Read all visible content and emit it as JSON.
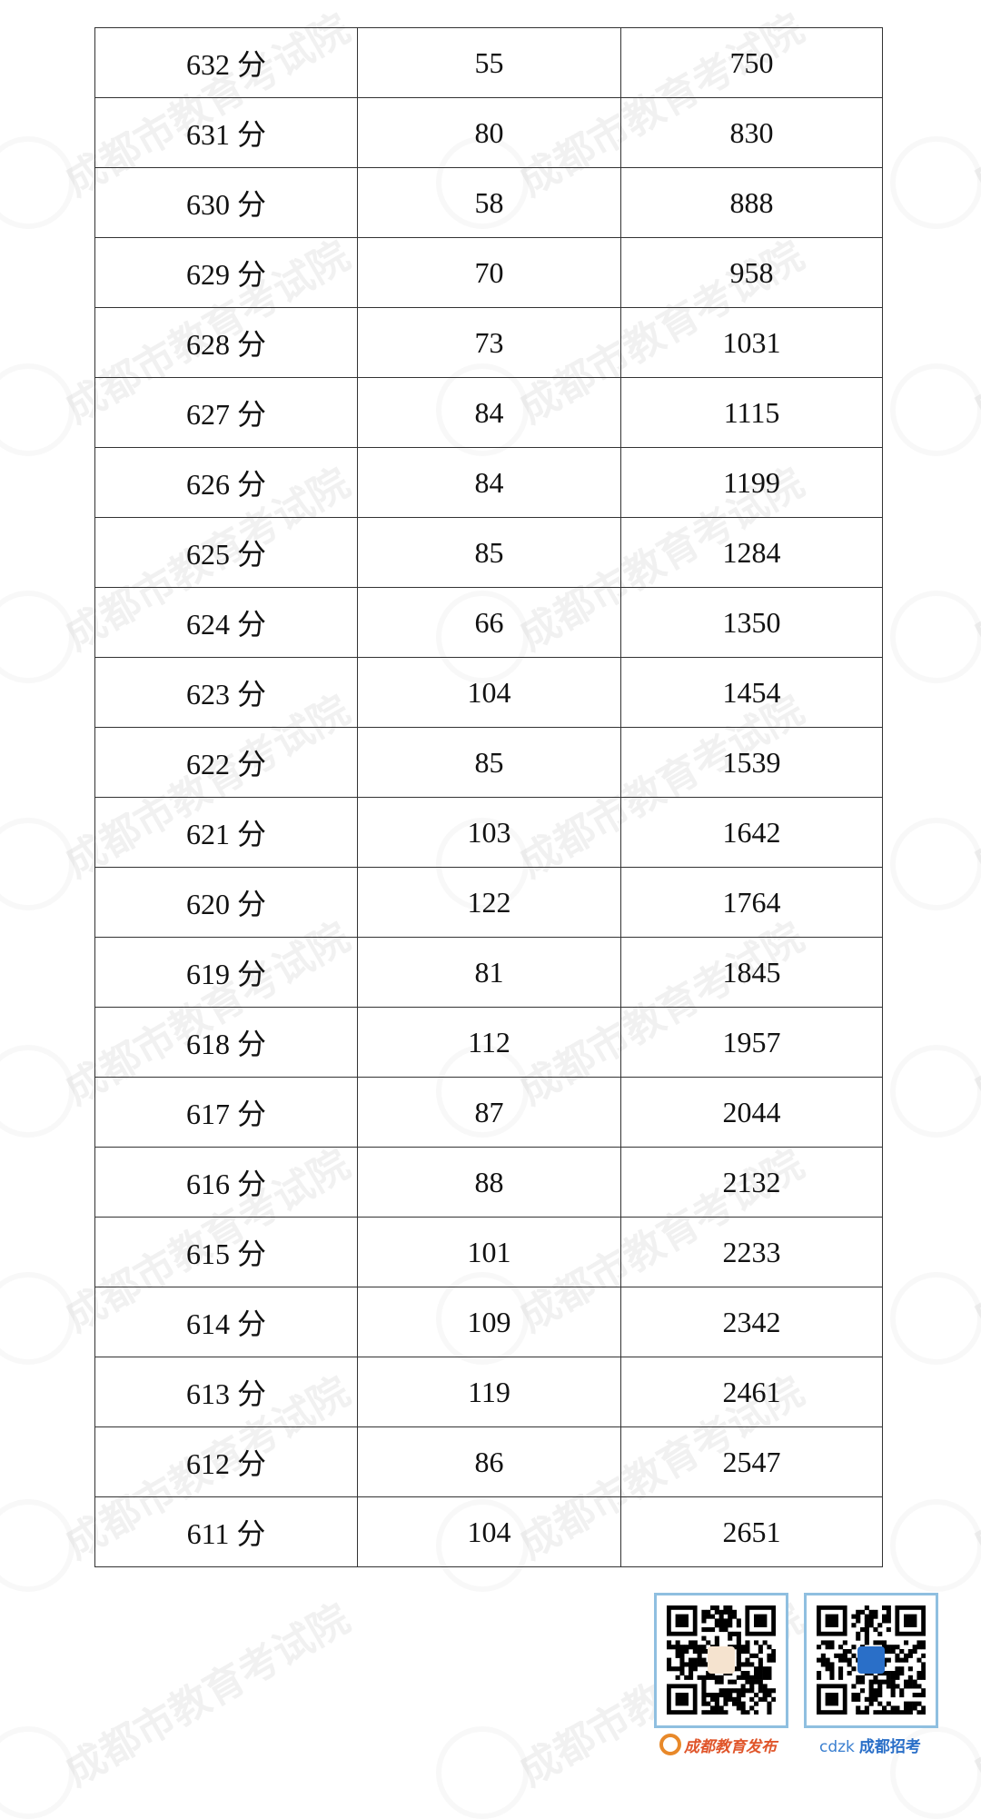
{
  "watermark": "成都市教育考试院",
  "table": {
    "rows": [
      [
        "632 分",
        "55",
        "750"
      ],
      [
        "631 分",
        "80",
        "830"
      ],
      [
        "630 分",
        "58",
        "888"
      ],
      [
        "629 分",
        "70",
        "958"
      ],
      [
        "628 分",
        "73",
        "1031"
      ],
      [
        "627 分",
        "84",
        "1115"
      ],
      [
        "626 分",
        "84",
        "1199"
      ],
      [
        "625 分",
        "85",
        "1284"
      ],
      [
        "624 分",
        "66",
        "1350"
      ],
      [
        "623 分",
        "104",
        "1454"
      ],
      [
        "622 分",
        "85",
        "1539"
      ],
      [
        "621 分",
        "103",
        "1642"
      ],
      [
        "620 分",
        "122",
        "1764"
      ],
      [
        "619 分",
        "81",
        "1845"
      ],
      [
        "618 分",
        "112",
        "1957"
      ],
      [
        "617 分",
        "87",
        "2044"
      ],
      [
        "616 分",
        "88",
        "2132"
      ],
      [
        "615 分",
        "101",
        "2233"
      ],
      [
        "614 分",
        "109",
        "2342"
      ],
      [
        "613 分",
        "119",
        "2461"
      ],
      [
        "612 分",
        "86",
        "2547"
      ],
      [
        "611 分",
        "104",
        "2651"
      ]
    ]
  },
  "footer": {
    "qr1_label": "成都教育发布",
    "qr2_logo": "cdzk",
    "qr2_label": "成都招考",
    "colors": {
      "qr_border": "#8fbfe0",
      "label1": "#e0552a",
      "label2": "#2a6fc8"
    }
  }
}
